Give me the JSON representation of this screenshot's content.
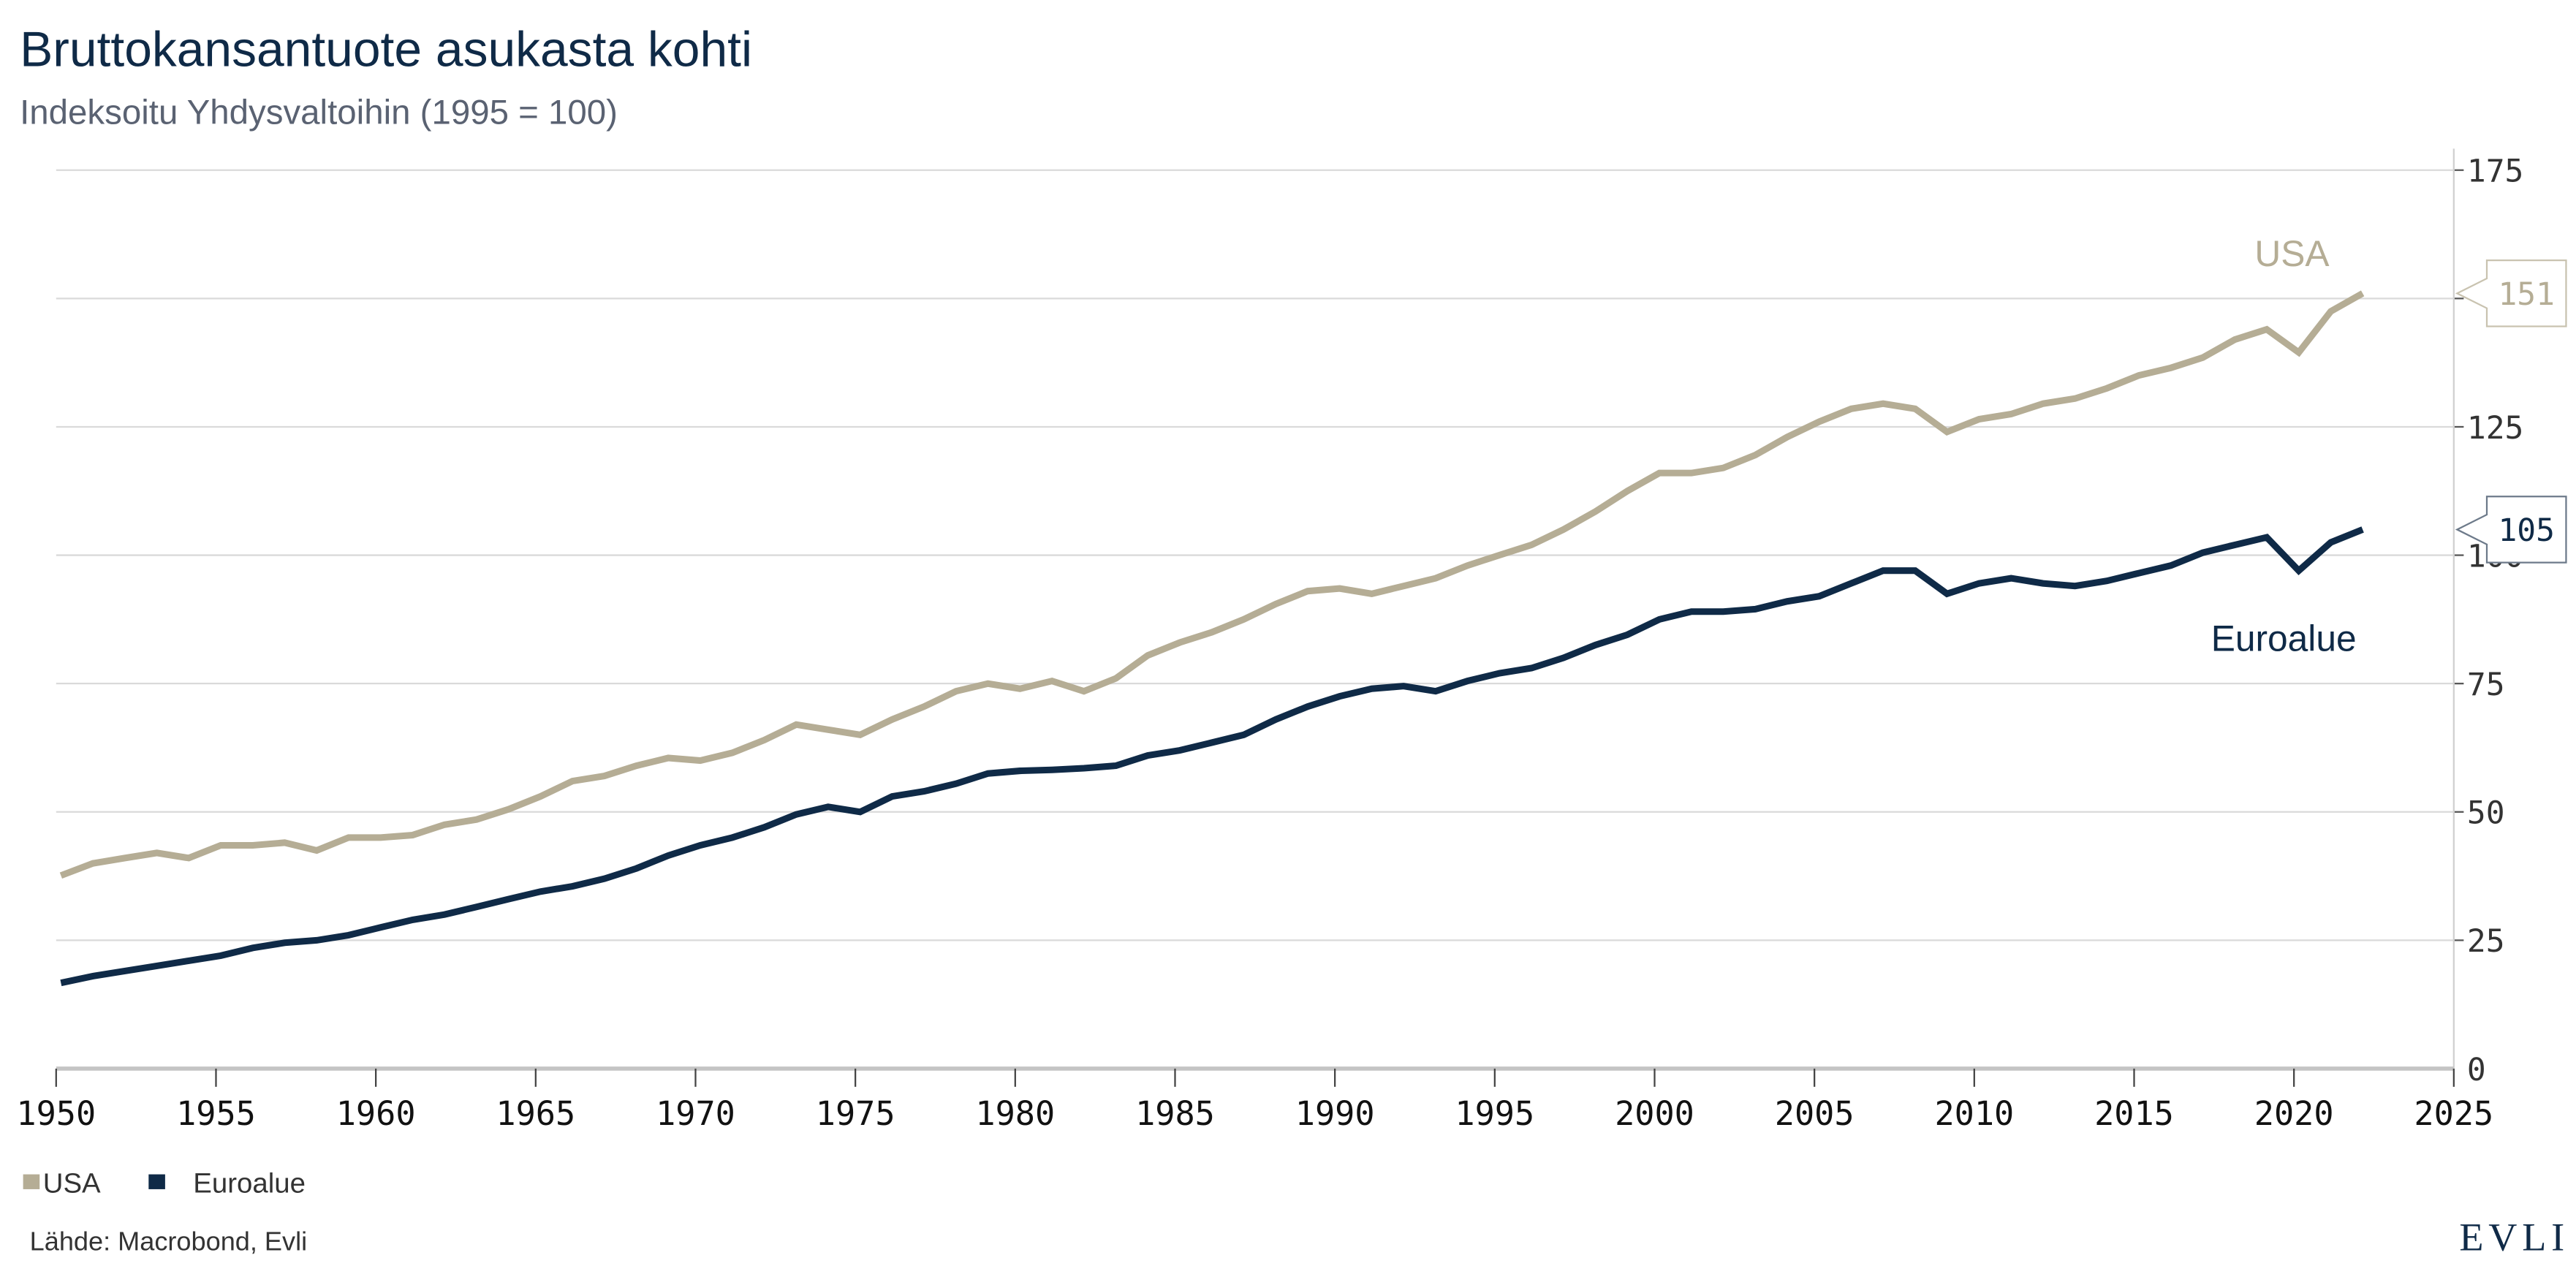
{
  "header": {
    "title": "Bruttokansantuote asukasta kohti",
    "subtitle": "Indeksoitu Yhdysvaltoihin (1995 = 100)"
  },
  "footer": {
    "source": "Lähde: Macrobond, Evli",
    "logo": "EVLI"
  },
  "chart_data": {
    "type": "line",
    "title": "Bruttokansantuote asukasta kohti",
    "subtitle": "Indeksoitu Yhdysvaltoihin (1995 = 100)",
    "xlabel": "",
    "ylabel": "",
    "xlim": [
      1950,
      2025
    ],
    "ylim": [
      0,
      175
    ],
    "grid": true,
    "y_axis_side": "right",
    "legend": "bottom-left",
    "x_ticks": [
      "1950",
      "1955",
      "1960",
      "1965",
      "1970",
      "1975",
      "1980",
      "1985",
      "1990",
      "1995",
      "2000",
      "2005",
      "2010",
      "2015",
      "2020",
      "2025"
    ],
    "y_ticks": [
      "0",
      "25",
      "50",
      "75",
      "100",
      "125",
      "175"
    ],
    "gridlines": [
      0,
      25,
      50,
      75,
      100,
      125,
      150,
      175
    ],
    "x": [
      1950,
      1951,
      1952,
      1953,
      1954,
      1955,
      1956,
      1957,
      1958,
      1959,
      1960,
      1961,
      1962,
      1963,
      1964,
      1965,
      1966,
      1967,
      1968,
      1969,
      1970,
      1971,
      1972,
      1973,
      1974,
      1975,
      1976,
      1977,
      1978,
      1979,
      1980,
      1981,
      1982,
      1983,
      1984,
      1985,
      1986,
      1987,
      1988,
      1989,
      1990,
      1991,
      1992,
      1993,
      1994,
      1995,
      1996,
      1997,
      1998,
      1999,
      2000,
      2001,
      2002,
      2003,
      2004,
      2005,
      2006,
      2007,
      2008,
      2009,
      2010,
      2011,
      2012,
      2013,
      2014,
      2015,
      2016,
      2017,
      2018,
      2019,
      2020,
      2021,
      2022
    ],
    "series": [
      {
        "name": "USA",
        "color": "#b5ad95",
        "end_label": "151",
        "values": [
          37.6,
          40,
          41,
          42,
          41,
          43.5,
          43.5,
          44,
          42.5,
          45,
          45,
          45.5,
          47.5,
          48.5,
          50.5,
          53,
          56,
          57,
          59,
          60.5,
          60,
          61.5,
          64,
          67,
          66,
          65,
          68,
          70.5,
          73.5,
          75,
          74,
          75.5,
          73.5,
          76,
          80.5,
          83,
          85,
          87.5,
          90.5,
          93,
          93.5,
          92.5,
          94,
          95.5,
          98,
          100,
          102,
          105,
          108.5,
          112.5,
          116,
          116,
          117,
          119.5,
          123,
          126,
          128.5,
          129.5,
          128.5,
          124,
          126.5,
          127.5,
          129.5,
          130.5,
          132.5,
          135,
          136.5,
          138.5,
          142,
          144,
          139.5,
          147.5,
          151
        ]
      },
      {
        "name": "Euroalue",
        "color": "#0f2a47",
        "end_label": "105",
        "values": [
          16.7,
          18,
          19,
          20,
          21,
          22,
          23.5,
          24.5,
          25,
          26,
          27.5,
          29,
          30,
          31.5,
          33,
          34.5,
          35.5,
          37,
          39,
          41.5,
          43.5,
          45,
          47,
          49.5,
          51,
          50,
          53,
          54,
          55.5,
          57.5,
          58,
          58.2,
          58.5,
          59,
          61,
          62,
          63.5,
          65,
          68,
          70.5,
          72.5,
          74,
          74.5,
          73.5,
          75.5,
          77,
          78,
          80,
          82.5,
          84.5,
          87.5,
          89,
          89,
          89.5,
          91,
          92,
          94.5,
          97,
          97,
          92.5,
          94.5,
          95.5,
          94.5,
          94,
          95,
          96.5,
          98,
          100.5,
          102,
          103.5,
          97,
          102.5,
          105
        ]
      }
    ]
  }
}
